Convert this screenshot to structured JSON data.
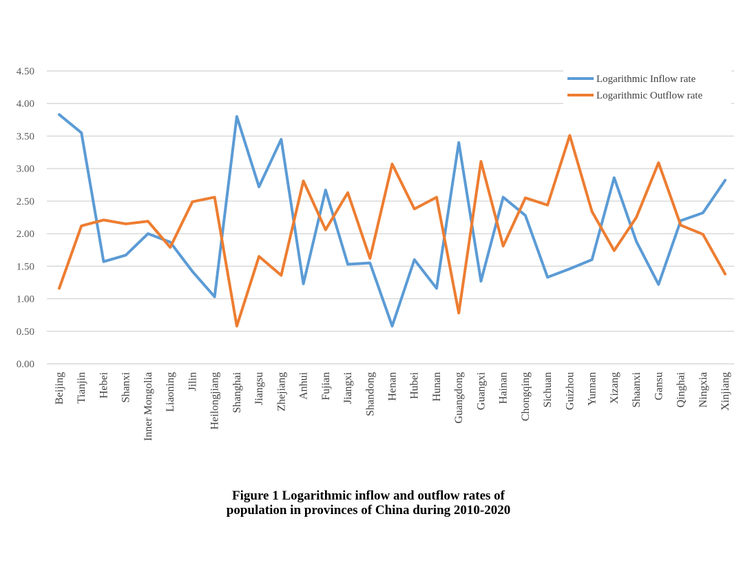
{
  "chart_data": {
    "type": "line",
    "title": "Figure 1  Logarithmic inflow and outflow rates of population in provinces of China during 2010-2020",
    "caption_lines": [
      "Figure 1  Logarithmic inflow and outflow rates of",
      "population in provinces of China during 2010-2020"
    ],
    "xlabel": "",
    "ylabel": "",
    "ylim": [
      0,
      4.5
    ],
    "yticks": [
      "0.00",
      "0.50",
      "1.00",
      "1.50",
      "2.00",
      "2.50",
      "3.00",
      "3.50",
      "4.00",
      "4.50"
    ],
    "grid": true,
    "legend_position": "top-right",
    "categories": [
      "Beijing",
      "Tianjin",
      "Hebei",
      "Shanxi",
      "Inner Mongolia",
      "Liaoning",
      "Jilin",
      "Heilongjiang",
      "Shanghai",
      "Jiangsu",
      "Zhejiang",
      "Anhui",
      "Fujian",
      "Jiangxi",
      "Shandong",
      "Henan",
      "Hubei",
      "Hunan",
      "Guangdong",
      "Guangxi",
      "Hainan",
      "Chongqing",
      "Sichuan",
      "Guizhou",
      "Yunnan",
      "Xizang",
      "Shaanxi",
      "Gansu",
      "Qinghai",
      "Ningxia",
      "Xinjiang"
    ],
    "series": [
      {
        "name": "Logarithmic Inflow rate",
        "color": "#5b9bd5",
        "values": [
          3.83,
          3.55,
          1.57,
          1.67,
          2.0,
          1.87,
          1.42,
          1.03,
          3.8,
          2.72,
          3.45,
          1.23,
          2.67,
          1.53,
          1.55,
          0.58,
          1.6,
          1.16,
          3.4,
          1.27,
          2.56,
          2.28,
          1.33,
          1.46,
          1.6,
          2.86,
          1.88,
          1.22,
          2.2,
          2.32,
          2.82
        ]
      },
      {
        "name": "Logarithmic Outflow rate",
        "color": "#ed7d31",
        "values": [
          1.16,
          2.12,
          2.21,
          2.15,
          2.19,
          1.79,
          2.49,
          2.56,
          0.58,
          1.65,
          1.36,
          2.81,
          2.06,
          2.63,
          1.62,
          3.07,
          2.38,
          2.56,
          0.78,
          3.11,
          1.81,
          2.55,
          2.44,
          3.51,
          2.34,
          1.74,
          2.25,
          3.09,
          2.13,
          1.99,
          1.38
        ]
      }
    ]
  }
}
